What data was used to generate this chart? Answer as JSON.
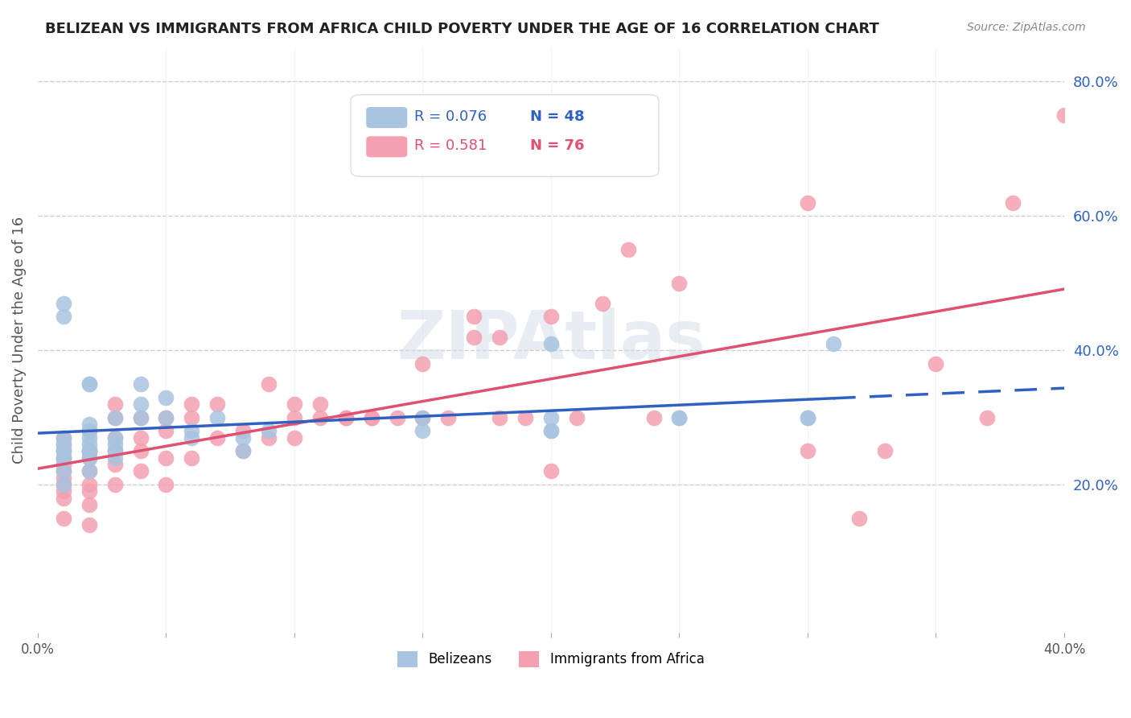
{
  "title": "BELIZEAN VS IMMIGRANTS FROM AFRICA CHILD POVERTY UNDER THE AGE OF 16 CORRELATION CHART",
  "source": "Source: ZipAtlas.com",
  "ylabel": "Child Poverty Under the Age of 16",
  "xlim": [
    0.0,
    0.4
  ],
  "ylim": [
    -0.02,
    0.85
  ],
  "x_ticks": [
    0.0,
    0.05,
    0.1,
    0.15,
    0.2,
    0.25,
    0.3,
    0.35,
    0.4
  ],
  "y_ticks_right": [
    0.2,
    0.4,
    0.6,
    0.8
  ],
  "y_tick_labels_right": [
    "20.0%",
    "40.0%",
    "60.0%",
    "80.0%"
  ],
  "belizean_color": "#a8c4e0",
  "africa_color": "#f4a0b0",
  "belizean_line_color": "#3060c0",
  "africa_line_color": "#e05070",
  "legend_R1": "R = 0.076",
  "legend_N1": "N = 48",
  "legend_R2": "R = 0.581",
  "legend_N2": "N = 76",
  "legend_label1": "Belizeans",
  "legend_label2": "Immigrants from Africa",
  "watermark": "ZIPAtlas",
  "belizean_x": [
    0.01,
    0.01,
    0.01,
    0.01,
    0.01,
    0.01,
    0.01,
    0.01,
    0.02,
    0.02,
    0.02,
    0.02,
    0.02,
    0.02,
    0.02,
    0.02,
    0.02,
    0.03,
    0.03,
    0.03,
    0.03,
    0.03,
    0.04,
    0.04,
    0.04,
    0.05,
    0.05,
    0.06,
    0.06,
    0.07,
    0.08,
    0.08,
    0.09,
    0.01,
    0.01,
    0.02,
    0.02,
    0.15,
    0.15,
    0.2,
    0.2,
    0.2,
    0.2,
    0.25,
    0.25,
    0.3,
    0.3,
    0.31
  ],
  "belizean_y": [
    0.2,
    0.22,
    0.24,
    0.24,
    0.25,
    0.25,
    0.26,
    0.27,
    0.22,
    0.24,
    0.25,
    0.25,
    0.25,
    0.26,
    0.27,
    0.28,
    0.29,
    0.24,
    0.25,
    0.26,
    0.27,
    0.3,
    0.3,
    0.32,
    0.35,
    0.3,
    0.33,
    0.28,
    0.27,
    0.3,
    0.27,
    0.25,
    0.28,
    0.45,
    0.47,
    0.35,
    0.35,
    0.28,
    0.3,
    0.28,
    0.28,
    0.3,
    0.41,
    0.3,
    0.3,
    0.3,
    0.3,
    0.41
  ],
  "africa_x": [
    0.01,
    0.01,
    0.01,
    0.01,
    0.01,
    0.01,
    0.01,
    0.01,
    0.01,
    0.01,
    0.01,
    0.02,
    0.02,
    0.02,
    0.02,
    0.02,
    0.02,
    0.02,
    0.02,
    0.02,
    0.03,
    0.03,
    0.03,
    0.03,
    0.03,
    0.03,
    0.04,
    0.04,
    0.04,
    0.04,
    0.05,
    0.05,
    0.05,
    0.05,
    0.06,
    0.06,
    0.06,
    0.07,
    0.07,
    0.08,
    0.08,
    0.09,
    0.09,
    0.1,
    0.1,
    0.1,
    0.11,
    0.11,
    0.12,
    0.12,
    0.13,
    0.13,
    0.14,
    0.15,
    0.15,
    0.16,
    0.17,
    0.17,
    0.18,
    0.18,
    0.19,
    0.2,
    0.2,
    0.21,
    0.22,
    0.23,
    0.24,
    0.25,
    0.3,
    0.3,
    0.32,
    0.33,
    0.35,
    0.37,
    0.38,
    0.4
  ],
  "africa_y": [
    0.15,
    0.18,
    0.19,
    0.2,
    0.21,
    0.22,
    0.23,
    0.24,
    0.25,
    0.26,
    0.27,
    0.14,
    0.17,
    0.19,
    0.2,
    0.22,
    0.24,
    0.25,
    0.25,
    0.28,
    0.2,
    0.23,
    0.25,
    0.27,
    0.3,
    0.32,
    0.22,
    0.25,
    0.27,
    0.3,
    0.2,
    0.24,
    0.28,
    0.3,
    0.24,
    0.3,
    0.32,
    0.27,
    0.32,
    0.25,
    0.28,
    0.27,
    0.35,
    0.27,
    0.3,
    0.32,
    0.3,
    0.32,
    0.3,
    0.3,
    0.3,
    0.3,
    0.3,
    0.3,
    0.38,
    0.3,
    0.42,
    0.45,
    0.3,
    0.42,
    0.3,
    0.45,
    0.22,
    0.3,
    0.47,
    0.55,
    0.3,
    0.5,
    0.25,
    0.62,
    0.15,
    0.25,
    0.38,
    0.3,
    0.62,
    0.75
  ]
}
